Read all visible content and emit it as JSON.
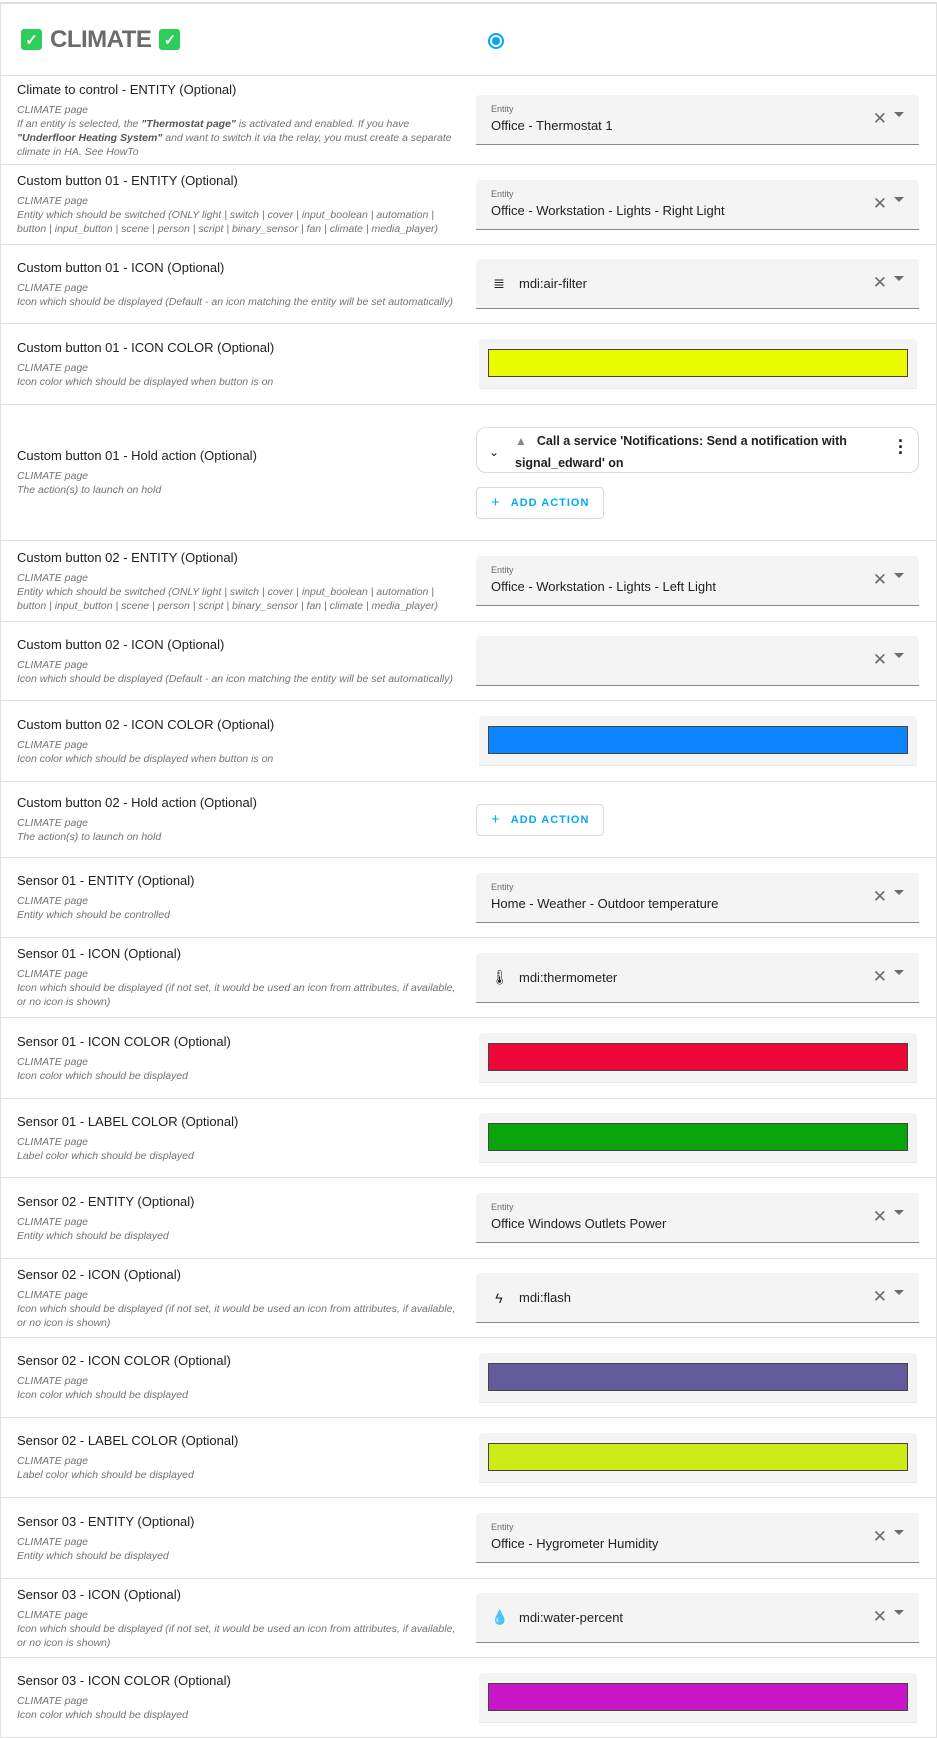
{
  "header": {
    "title": "CLIMATE",
    "check_icon": "check-box-icon",
    "radio_selected": true
  },
  "colors": {
    "accent": "#03a9f4",
    "check": "#2ecc5a"
  },
  "rows": [
    {
      "type": "entity",
      "title": "Climate to control - ENTITY (Optional)",
      "page": "CLIMATE page",
      "desc_html": "If an entity is selected, the <b>\"Thermostat page\"</b> is activated and enabled. If you have <b>\"Underfloor Heating System\"</b> and want to switch it via the relay, you must create a separate climate in HA. See HowTo",
      "label": "Entity",
      "value": "Office - Thermostat 1"
    },
    {
      "type": "entity",
      "title": "Custom button 01 - ENTITY (Optional)",
      "page": "CLIMATE page",
      "desc": "Entity which should be switched (ONLY light | switch | cover | input_boolean | automation | button | input_button | scene | person | script | binary_sensor | fan | climate | media_player)",
      "label": "Entity",
      "value": "Office - Workstation - Lights - Right Light"
    },
    {
      "type": "icon",
      "title": "Custom button 01 - ICON (Optional)",
      "page": "CLIMATE page",
      "desc": "Icon which should be displayed (Default - an icon matching the entity will be set automatically)",
      "value": "mdi:air-filter",
      "icon": "air-filter-icon",
      "glyph": "≣"
    },
    {
      "type": "color",
      "title": "Custom button 01 - ICON COLOR (Optional)",
      "page": "CLIMATE page",
      "desc": "Icon color which should be displayed when button is on",
      "color": "#ebfc00"
    },
    {
      "type": "action",
      "title": "Custom button 01 - Hold action (Optional)",
      "page": "CLIMATE page",
      "desc": "The action(s) to launch on hold",
      "action": "Call a service 'Notifications: Send a notification with signal_edward' on",
      "add_label": "ADD ACTION"
    },
    {
      "type": "entity",
      "title": "Custom button 02 - ENTITY (Optional)",
      "page": "CLIMATE page",
      "desc": "Entity which should be switched (ONLY light | switch | cover | input_boolean | automation | button | input_button | scene | person | script | binary_sensor | fan | climate | media_player)",
      "label": "Entity",
      "value": "Office - Workstation - Lights - Left Light"
    },
    {
      "type": "icon",
      "title": "Custom button 02 - ICON (Optional)",
      "page": "CLIMATE page",
      "desc": "Icon which should be displayed (Default - an icon matching the entity will be set automatically)",
      "value": "",
      "icon": "",
      "glyph": ""
    },
    {
      "type": "color",
      "title": "Custom button 02 - ICON COLOR (Optional)",
      "page": "CLIMATE page",
      "desc": "Icon color which should be displayed when button is on",
      "color": "#0a84ff"
    },
    {
      "type": "hold",
      "title": "Custom button 02 - Hold action (Optional)",
      "page": "CLIMATE page",
      "desc": "The action(s) to launch on hold",
      "add_label": "ADD ACTION"
    },
    {
      "type": "entity",
      "title": "Sensor 01 - ENTITY (Optional)",
      "page": "CLIMATE page",
      "desc": "Entity which should be controlled",
      "label": "Entity",
      "value": "Home - Weather - Outdoor temperature"
    },
    {
      "type": "icon",
      "title": "Sensor 01 - ICON (Optional)",
      "page": "CLIMATE page",
      "desc": "Icon which should be displayed (if not set, it would be used an icon from attributes, if available, or no icon is shown)",
      "value": "mdi:thermometer",
      "icon": "thermometer-icon",
      "glyph": "🌡"
    },
    {
      "type": "color",
      "title": "Sensor 01 - ICON COLOR (Optional)",
      "page": "CLIMATE page",
      "desc": "Icon color which should be displayed",
      "color": "#ee0638"
    },
    {
      "type": "color",
      "title": "Sensor 01 - LABEL COLOR (Optional)",
      "page": "CLIMATE page",
      "desc": "Label color which should be displayed",
      "color": "#08a40c"
    },
    {
      "type": "entity",
      "title": "Sensor 02 - ENTITY (Optional)",
      "page": "CLIMATE page",
      "desc": "Entity which should be displayed",
      "label": "Entity",
      "value": "Office Windows Outlets Power"
    },
    {
      "type": "icon",
      "title": "Sensor 02 - ICON (Optional)",
      "page": "CLIMATE page",
      "desc": "Icon which should be displayed (if not set, it would be used an icon from attributes, if available, or no icon is shown)",
      "value": "mdi:flash",
      "icon": "flash-icon",
      "glyph": "ϟ"
    },
    {
      "type": "color",
      "title": "Sensor 02 - ICON COLOR (Optional)",
      "page": "CLIMATE page",
      "desc": "Icon color which should be displayed",
      "color": "#625a9a"
    },
    {
      "type": "color",
      "title": "Sensor 02 - LABEL COLOR (Optional)",
      "page": "CLIMATE page",
      "desc": "Label color which should be displayed",
      "color": "#cdec17"
    },
    {
      "type": "entity",
      "title": "Sensor 03 - ENTITY (Optional)",
      "page": "CLIMATE page",
      "desc": "Entity which should be displayed",
      "label": "Entity",
      "value": "Office - Hygrometer Humidity"
    },
    {
      "type": "icon",
      "title": "Sensor 03 - ICON (Optional)",
      "page": "CLIMATE page",
      "desc": "Icon which should be displayed (if not set, it would be used an icon from attributes, if available, or no icon is shown)",
      "value": "mdi:water-percent",
      "icon": "water-percent-icon",
      "glyph": "💧"
    },
    {
      "type": "color",
      "title": "Sensor 03 - ICON COLOR (Optional)",
      "page": "CLIMATE page",
      "desc": "Icon color which should be displayed",
      "color": "#c815c8"
    }
  ]
}
